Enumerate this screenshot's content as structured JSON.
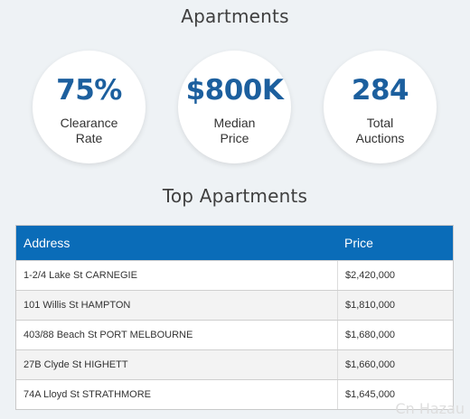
{
  "header": {
    "title": "Apartments"
  },
  "stats": [
    {
      "value": "75%",
      "label_line1": "Clearance",
      "label_line2": "Rate"
    },
    {
      "value": "$800K",
      "label_line1": "Median",
      "label_line2": "Price"
    },
    {
      "value": "284",
      "label_line1": "Total",
      "label_line2": "Auctions"
    }
  ],
  "top_section": {
    "title": "Top Apartments"
  },
  "table": {
    "columns": [
      "Address",
      "Price"
    ],
    "rows": [
      {
        "address": "1-2/4 Lake St CARNEGIE",
        "price": "$2,420,000"
      },
      {
        "address": "101 Willis St HAMPTON",
        "price": "$1,810,000"
      },
      {
        "address": "403/88 Beach St PORT MELBOURNE",
        "price": "$1,680,000"
      },
      {
        "address": "27B Clyde St HIGHETT",
        "price": "$1,660,000"
      },
      {
        "address": "74A Lloyd St STRATHMORE",
        "price": "$1,645,000"
      }
    ]
  },
  "watermark": "Cn Hazau",
  "colors": {
    "accent": "#1c5f9e",
    "header_bg": "#0a6cb8",
    "page_bg": "#eef2f5"
  }
}
